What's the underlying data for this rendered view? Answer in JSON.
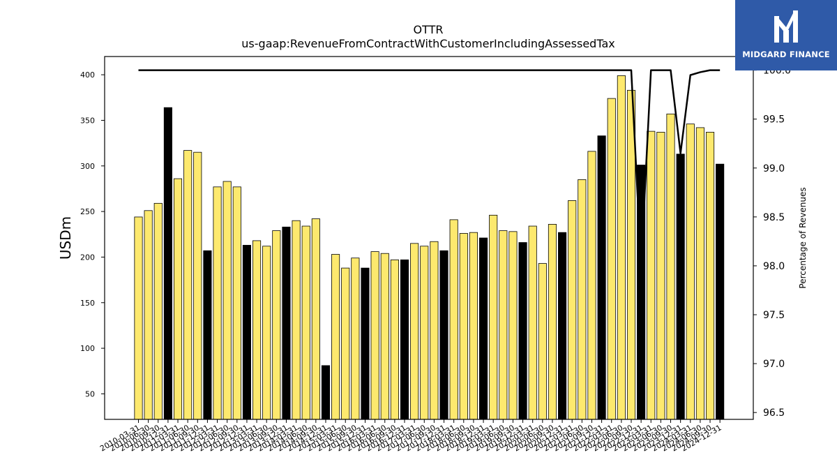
{
  "brand": {
    "name": "MIDGARD FINANCE",
    "bg_color": "#2f5aa8"
  },
  "chart_data": {
    "type": "bar",
    "title": "OTTR",
    "subtitle": "us-gaap:RevenueFromContractWithCustomerIncludingAssessedTax",
    "ylabel": "USDm",
    "y2label": "Percentage of Revenues",
    "ylim": [
      22,
      420
    ],
    "y2lim": [
      96.43,
      100.14
    ],
    "yticks": [
      50,
      100,
      150,
      200,
      250,
      300,
      350,
      400
    ],
    "y2ticks": [
      "96.5",
      "97.0",
      "97.5",
      "98.0",
      "98.5",
      "99.0",
      "99.5",
      "100.0"
    ],
    "colors": {
      "quarter": "#fde96e",
      "annual": "#000000",
      "line": "#000000"
    },
    "categories": [
      "2010-03-31",
      "2010-06-30",
      "2010-09-30",
      "2010-12-31",
      "2011-03-31",
      "2011-06-30",
      "2011-09-30",
      "2011-12-31",
      "2012-03-31",
      "2012-06-30",
      "2012-09-30",
      "2012-12-31",
      "2013-03-31",
      "2013-06-30",
      "2013-09-30",
      "2013-12-31",
      "2014-03-31",
      "2014-06-30",
      "2014-09-30",
      "2014-12-31",
      "2015-03-31",
      "2015-06-30",
      "2015-09-30",
      "2015-12-31",
      "2016-03-31",
      "2016-06-30",
      "2016-09-30",
      "2016-12-31",
      "2017-03-31",
      "2017-06-30",
      "2017-09-30",
      "2017-12-31",
      "2018-03-31",
      "2018-06-30",
      "2018-09-30",
      "2018-12-31",
      "2019-03-31",
      "2019-06-30",
      "2019-09-30",
      "2019-12-31",
      "2020-03-31",
      "2020-06-30",
      "2020-09-30",
      "2020-12-31",
      "2021-03-31",
      "2021-06-30",
      "2021-09-30",
      "2021-12-31",
      "2022-03-31",
      "2022-06-30",
      "2022-09-30",
      "2022-12-31",
      "2023-03-31",
      "2023-06-30",
      "2023-09-30",
      "2023-12-31",
      "2024-03-31",
      "2024-06-30",
      "2024-09-30",
      "2024-12-31"
    ],
    "values": [
      244,
      251,
      259,
      364,
      286,
      317,
      315,
      207,
      277,
      283,
      277,
      213,
      218,
      212,
      229,
      233,
      240,
      234,
      242,
      81,
      203,
      188,
      199,
      188,
      206,
      204,
      197,
      197,
      215,
      212,
      217,
      207,
      241,
      226,
      227,
      221,
      246,
      229,
      228,
      216,
      234,
      193,
      236,
      227,
      262,
      285,
      316,
      333,
      374,
      399,
      383,
      301,
      338,
      337,
      357,
      313,
      346,
      342,
      337,
      302
    ],
    "annual": [
      false,
      false,
      false,
      true,
      false,
      false,
      false,
      true,
      false,
      false,
      false,
      true,
      false,
      false,
      false,
      true,
      false,
      false,
      false,
      true,
      false,
      false,
      false,
      true,
      false,
      false,
      false,
      true,
      false,
      false,
      false,
      true,
      false,
      false,
      false,
      true,
      false,
      false,
      false,
      true,
      false,
      false,
      false,
      true,
      false,
      false,
      false,
      true,
      false,
      false,
      false,
      true,
      false,
      false,
      false,
      true,
      false,
      false,
      false,
      true
    ],
    "percentage_series": {
      "name": "",
      "values": [
        100,
        100,
        100,
        100,
        100,
        100,
        100,
        100,
        100,
        100,
        100,
        100,
        100,
        100,
        100,
        100,
        100,
        100,
        100,
        100,
        100,
        100,
        100,
        100,
        100,
        100,
        100,
        100,
        100,
        100,
        100,
        100,
        100,
        100,
        100,
        100,
        100,
        100,
        100,
        100,
        100,
        100,
        100,
        100,
        100,
        100,
        100,
        100,
        100,
        100,
        100,
        98.0,
        100,
        100,
        100,
        99.15,
        99.95,
        99.98,
        100,
        100
      ]
    }
  }
}
